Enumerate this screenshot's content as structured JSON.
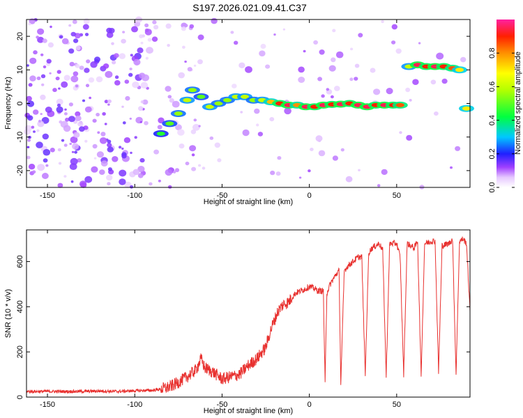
{
  "chart_data": [
    {
      "type": "heatmap",
      "title": "S197.2026.021.09.41.C37",
      "xlabel": "Height of straight line (km)",
      "ylabel": "Frequency (Hz)",
      "xlim": [
        -162,
        92
      ],
      "ylim": [
        -25,
        25
      ],
      "xticks": [
        -150,
        -100,
        -50,
        0,
        50
      ],
      "yticks": [
        -20,
        -10,
        0,
        10,
        20
      ],
      "xtick_labels": [
        "-150",
        "-100",
        "-50",
        "0",
        "50"
      ],
      "ytick_labels": [
        "-20",
        "-10",
        "0",
        "10",
        "20"
      ],
      "colorbar": {
        "label": "Normalized spectral amplitude",
        "range": [
          0,
          1
        ],
        "ticks": [
          0,
          0.2,
          0.4,
          0.6,
          0.8
        ],
        "tick_labels": [
          "0.0",
          "0.2",
          "0.4",
          "0.6",
          "0.8"
        ]
      },
      "ridge": {
        "x": [
          -85,
          -80,
          -75,
          -70,
          -67,
          -62,
          -57,
          -52,
          -47,
          -42,
          -37,
          -32,
          -27,
          -22,
          -17,
          -12,
          -7,
          -2,
          3,
          8,
          13,
          18,
          23,
          28,
          33,
          38,
          43,
          48,
          52,
          57,
          62,
          67,
          72,
          77,
          82,
          86,
          90
        ],
        "y": [
          -9,
          -6,
          -3,
          1,
          4,
          2,
          -1,
          0,
          1,
          2,
          2,
          1,
          1,
          0.5,
          0,
          -0.5,
          -0.5,
          -1,
          -1,
          -0.5,
          -0.3,
          -0.2,
          0,
          -0.5,
          -1,
          -0.5,
          -0.5,
          -0.5,
          -0.5,
          11,
          11.5,
          11,
          11,
          11,
          10.5,
          10,
          -1.5
        ],
        "amp": [
          0.45,
          0.5,
          0.55,
          0.6,
          0.55,
          0.5,
          0.6,
          0.55,
          0.55,
          0.6,
          0.6,
          0.55,
          0.6,
          0.75,
          0.9,
          0.95,
          0.8,
          0.95,
          0.9,
          0.95,
          0.9,
          0.95,
          0.9,
          0.95,
          0.95,
          0.9,
          0.95,
          0.9,
          0.85,
          0.6,
          0.95,
          0.9,
          0.95,
          0.9,
          0.85,
          0.7,
          0.7
        ]
      }
    },
    {
      "type": "line",
      "xlabel": "Height of straight line (km)",
      "ylabel": "SNR (10 * v/v)",
      "xlim": [
        -162,
        92
      ],
      "ylim": [
        0,
        740
      ],
      "xticks": [
        -150,
        -100,
        -50,
        0,
        50
      ],
      "yticks": [
        0,
        200,
        400,
        600
      ],
      "xtick_labels": [
        "-150",
        "-100",
        "-50",
        "0",
        "50"
      ],
      "ytick_labels": [
        "0",
        "200",
        "400",
        "600"
      ],
      "series": [
        {
          "name": "SNR",
          "color": "#e8302e",
          "x": [
            -162,
            -150,
            -140,
            -130,
            -120,
            -110,
            -100,
            -90,
            -85,
            -80,
            -75,
            -70,
            -65,
            -62,
            -60,
            -55,
            -50,
            -45,
            -40,
            -35,
            -30,
            -25,
            -22,
            -20,
            -18,
            -15,
            -12,
            -10,
            -8,
            -5,
            -2,
            0,
            3,
            5,
            8,
            9,
            10,
            12,
            15,
            17,
            18,
            20,
            22,
            25,
            28,
            30,
            32,
            34,
            36,
            40,
            42,
            44,
            46,
            50,
            52,
            54,
            56,
            60,
            62,
            64,
            66,
            70,
            72,
            74,
            76,
            80,
            82,
            84,
            86,
            88,
            90,
            92
          ],
          "y": [
            25,
            25,
            25,
            25,
            27,
            25,
            28,
            30,
            35,
            45,
            65,
            90,
            120,
            170,
            130,
            110,
            80,
            90,
            100,
            140,
            170,
            220,
            300,
            340,
            380,
            410,
            420,
            440,
            460,
            470,
            480,
            490,
            480,
            470,
            470,
            60,
            460,
            500,
            540,
            560,
            60,
            560,
            580,
            600,
            620,
            620,
            100,
            640,
            660,
            680,
            650,
            90,
            680,
            680,
            620,
            100,
            680,
            660,
            690,
            90,
            680,
            690,
            690,
            110,
            670,
            680,
            700,
            100,
            690,
            700,
            680,
            380
          ]
        }
      ]
    }
  ]
}
